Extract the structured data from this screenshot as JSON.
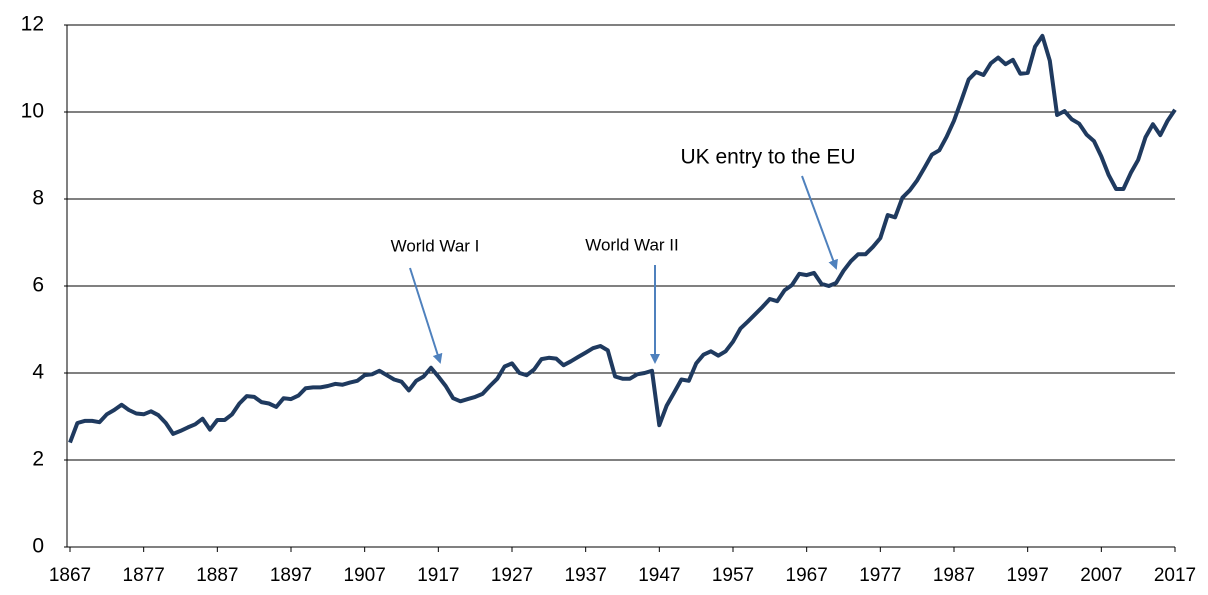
{
  "chart_data": {
    "type": "line",
    "x": [
      1867,
      1868,
      1869,
      1870,
      1871,
      1872,
      1873,
      1874,
      1875,
      1876,
      1877,
      1878,
      1879,
      1880,
      1881,
      1882,
      1883,
      1884,
      1885,
      1886,
      1887,
      1888,
      1889,
      1890,
      1891,
      1892,
      1893,
      1894,
      1895,
      1896,
      1897,
      1898,
      1899,
      1900,
      1901,
      1902,
      1903,
      1904,
      1905,
      1906,
      1907,
      1908,
      1909,
      1910,
      1911,
      1912,
      1913,
      1914,
      1915,
      1916,
      1917,
      1918,
      1919,
      1920,
      1921,
      1922,
      1923,
      1924,
      1925,
      1926,
      1927,
      1928,
      1929,
      1930,
      1931,
      1932,
      1933,
      1934,
      1935,
      1936,
      1937,
      1938,
      1939,
      1940,
      1941,
      1942,
      1943,
      1944,
      1945,
      1946,
      1947,
      1948,
      1949,
      1950,
      1951,
      1952,
      1953,
      1954,
      1955,
      1956,
      1957,
      1958,
      1959,
      1960,
      1961,
      1962,
      1963,
      1964,
      1965,
      1966,
      1967,
      1968,
      1969,
      1970,
      1971,
      1972,
      1973,
      1974,
      1975,
      1976,
      1977,
      1978,
      1979,
      1980,
      1981,
      1982,
      1983,
      1984,
      1985,
      1986,
      1987,
      1988,
      1989,
      1990,
      1991,
      1992,
      1993,
      1994,
      1995,
      1996,
      1997,
      1998,
      1999,
      2000,
      2001,
      2002,
      2003,
      2004,
      2005,
      2006,
      2007,
      2008,
      2009,
      2010,
      2011,
      2012,
      2013,
      2014,
      2015,
      2016,
      2017
    ],
    "values": [
      2.4,
      2.85,
      2.9,
      2.9,
      2.87,
      3.05,
      3.15,
      3.27,
      3.15,
      3.07,
      3.05,
      3.12,
      3.03,
      2.85,
      2.6,
      2.67,
      2.75,
      2.82,
      2.95,
      2.7,
      2.92,
      2.92,
      3.05,
      3.3,
      3.47,
      3.45,
      3.33,
      3.3,
      3.22,
      3.42,
      3.4,
      3.48,
      3.65,
      3.67,
      3.67,
      3.7,
      3.75,
      3.73,
      3.78,
      3.82,
      3.95,
      3.97,
      4.05,
      3.95,
      3.85,
      3.8,
      3.6,
      3.82,
      3.92,
      4.12,
      3.92,
      3.7,
      3.42,
      3.35,
      3.4,
      3.45,
      3.52,
      3.7,
      3.87,
      4.15,
      4.22,
      4.0,
      3.95,
      4.08,
      4.32,
      4.35,
      4.33,
      4.18,
      4.27,
      4.37,
      4.47,
      4.57,
      4.62,
      4.52,
      3.92,
      3.87,
      3.87,
      3.97,
      4.0,
      4.05,
      2.8,
      3.25,
      3.55,
      3.85,
      3.82,
      4.22,
      4.42,
      4.5,
      4.4,
      4.5,
      4.72,
      5.02,
      5.18,
      5.35,
      5.52,
      5.7,
      5.65,
      5.9,
      6.02,
      6.28,
      6.25,
      6.3,
      6.05,
      6.0,
      6.07,
      6.35,
      6.57,
      6.73,
      6.73,
      6.9,
      7.1,
      7.63,
      7.58,
      8.03,
      8.2,
      8.43,
      8.72,
      9.02,
      9.12,
      9.43,
      9.8,
      10.27,
      10.75,
      10.92,
      10.85,
      11.12,
      11.25,
      11.1,
      11.2,
      10.88,
      10.9,
      11.5,
      11.75,
      11.18,
      9.93,
      10.02,
      9.83,
      9.73,
      9.48,
      9.33,
      8.98,
      8.55,
      8.23,
      8.23,
      8.6,
      8.9,
      9.42,
      9.72,
      9.47,
      9.8,
      10.05
    ],
    "color": "#1f3a5f",
    "xlim": [
      1867,
      2017
    ],
    "xticks": [
      1867,
      1877,
      1887,
      1897,
      1907,
      1917,
      1927,
      1937,
      1947,
      1957,
      1967,
      1977,
      1987,
      1997,
      2007,
      2017
    ],
    "ylim": [
      0,
      12
    ],
    "yticks": [
      0,
      2,
      4,
      6,
      8,
      10,
      12
    ],
    "grid": true,
    "annotations": [
      {
        "text": "World War I"
      },
      {
        "text": "World War II"
      },
      {
        "text": "UK entry to the EU"
      }
    ],
    "annotation_color": "#4f81bd"
  }
}
